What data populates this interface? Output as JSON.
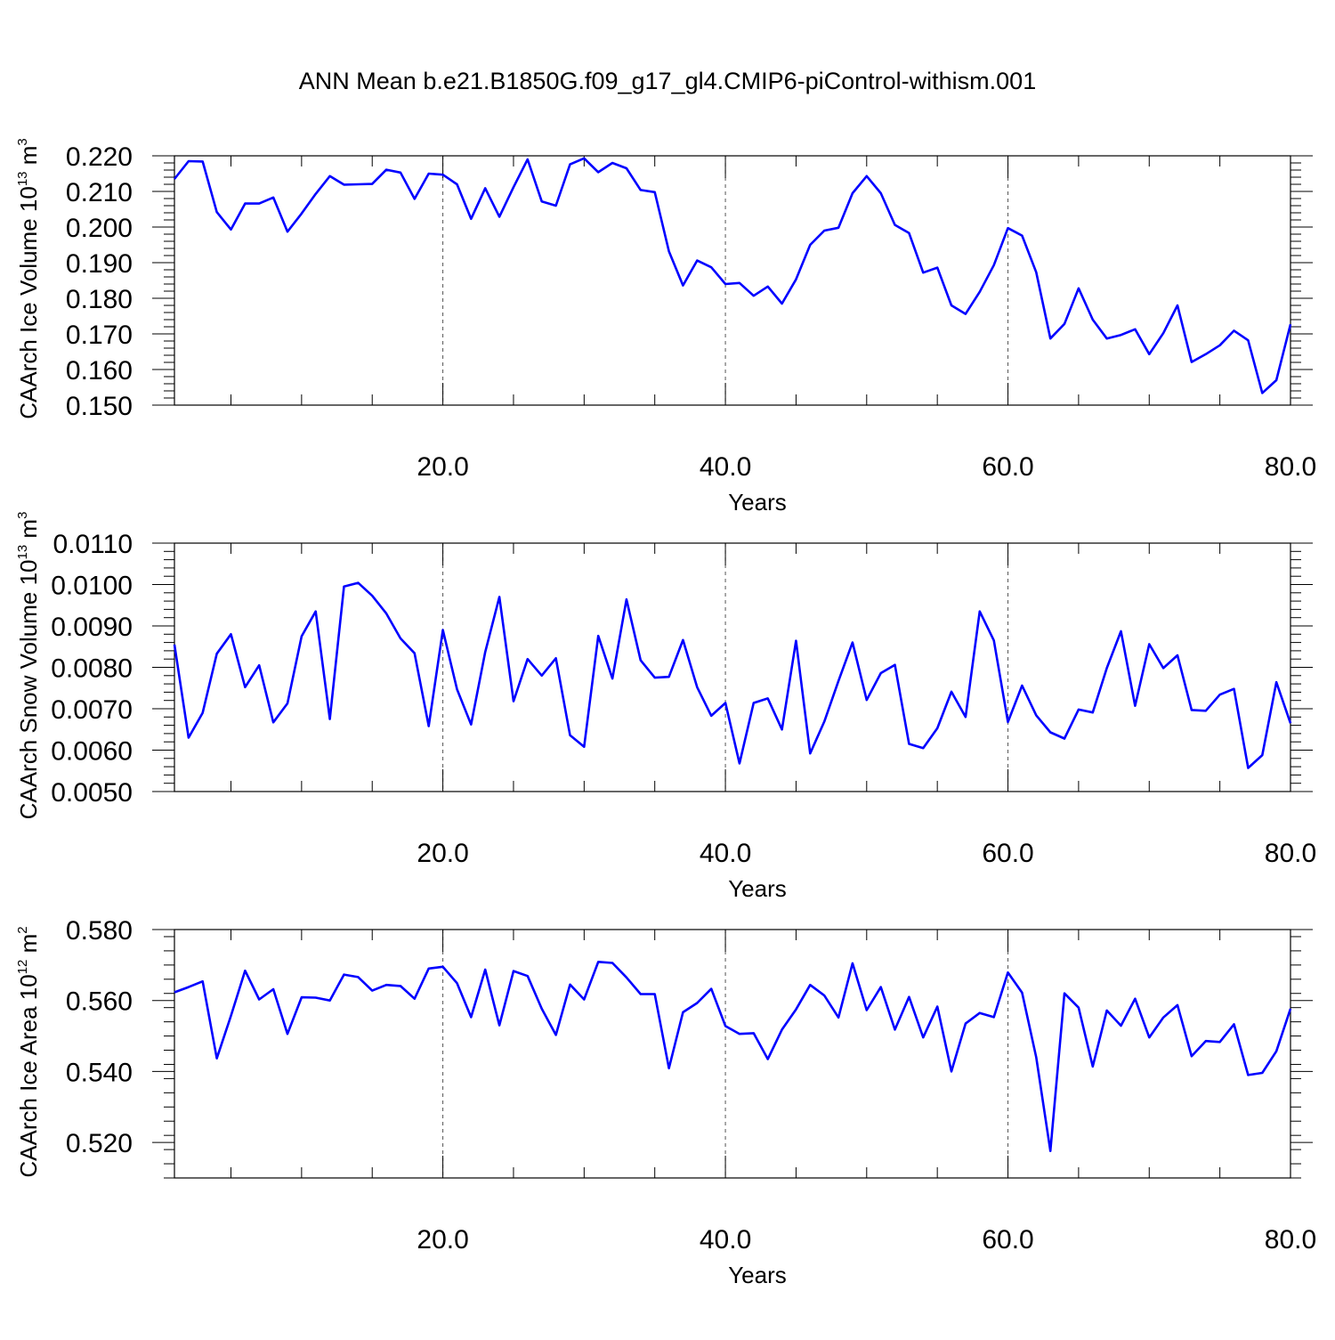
{
  "title": "ANN Mean b.e21.B1850G.f09_g17_gl4.CMIP6-piControl-withism.001",
  "chart_data": [
    {
      "type": "line",
      "title": "",
      "xlabel": "Years",
      "ylabel": "CAArch Ice Volume 10",
      "ylabel_exp": "13",
      "ylabel_unit": " m",
      "ylabel_unit_exp": "3",
      "xlim": [
        1,
        80
      ],
      "ylim": [
        0.15,
        0.22
      ],
      "xticks": [
        20,
        40,
        60,
        80
      ],
      "xtick_labels": [
        "20.0",
        "40.0",
        "60.0",
        "80.0"
      ],
      "yticks": [
        0.15,
        0.16,
        0.17,
        0.18,
        0.19,
        0.2,
        0.21,
        0.22
      ],
      "ytick_labels": [
        "0.150",
        "0.160",
        "0.170",
        "0.180",
        "0.190",
        "0.200",
        "0.210",
        "0.220"
      ],
      "grid": "vertical dashed at major x ticks",
      "color": "#0000ff",
      "x_start": 1,
      "values": [
        0.2135,
        0.2185,
        0.2184,
        0.2042,
        0.1993,
        0.2066,
        0.2066,
        0.2083,
        0.1987,
        0.2038,
        0.2093,
        0.2143,
        0.2119,
        0.212,
        0.2121,
        0.2161,
        0.2153,
        0.2079,
        0.215,
        0.2147,
        0.212,
        0.2023,
        0.2109,
        0.2029,
        0.2112,
        0.219,
        0.2072,
        0.206,
        0.2176,
        0.2193,
        0.2154,
        0.218,
        0.2165,
        0.2104,
        0.2098,
        0.1932,
        0.1836,
        0.1906,
        0.1887,
        0.184,
        0.1843,
        0.1807,
        0.1833,
        0.1785,
        0.1853,
        0.195,
        0.199,
        0.1998,
        0.2095,
        0.2143,
        0.2095,
        0.2006,
        0.1983,
        0.1872,
        0.1886,
        0.178,
        0.1756,
        0.1818,
        0.1893,
        0.1997,
        0.1976,
        0.1873,
        0.1687,
        0.1728,
        0.1828,
        0.174,
        0.1687,
        0.1697,
        0.1713,
        0.1643,
        0.1702,
        0.178,
        0.1621,
        0.1643,
        0.1668,
        0.1709,
        0.1682,
        0.1534,
        0.157,
        0.1727
      ]
    },
    {
      "type": "line",
      "title": "",
      "xlabel": "Years",
      "ylabel": "CAArch Snow Volume 10",
      "ylabel_exp": "13",
      "ylabel_unit": " m",
      "ylabel_unit_exp": "3",
      "xlim": [
        1,
        80
      ],
      "ylim": [
        0.005,
        0.011
      ],
      "xticks": [
        20,
        40,
        60,
        80
      ],
      "xtick_labels": [
        "20.0",
        "40.0",
        "60.0",
        "80.0"
      ],
      "yticks": [
        0.005,
        0.006,
        0.007,
        0.008,
        0.009,
        0.01,
        0.011
      ],
      "ytick_labels": [
        "0.0050",
        "0.0060",
        "0.0070",
        "0.0080",
        "0.0090",
        "0.0100",
        "0.0110"
      ],
      "grid": "vertical dashed at major x ticks",
      "color": "#0000ff",
      "x_start": 1,
      "values": [
        0.00855,
        0.0063,
        0.0069,
        0.00833,
        0.0088,
        0.00752,
        0.00805,
        0.00667,
        0.00713,
        0.00875,
        0.00935,
        0.00675,
        0.00995,
        0.01004,
        0.00973,
        0.0093,
        0.0087,
        0.00834,
        0.00658,
        0.0089,
        0.00747,
        0.00662,
        0.00837,
        0.0097,
        0.00718,
        0.0082,
        0.0078,
        0.00822,
        0.00636,
        0.00608,
        0.00876,
        0.00773,
        0.00964,
        0.00817,
        0.00775,
        0.00777,
        0.00866,
        0.00752,
        0.00683,
        0.00714,
        0.00568,
        0.00714,
        0.00725,
        0.0065,
        0.00864,
        0.00592,
        0.00669,
        0.00767,
        0.0086,
        0.00721,
        0.00786,
        0.00806,
        0.00615,
        0.00605,
        0.00653,
        0.00741,
        0.0068,
        0.00935,
        0.00865,
        0.00668,
        0.00756,
        0.00684,
        0.00643,
        0.00628,
        0.00698,
        0.00691,
        0.00798,
        0.00887,
        0.00707,
        0.00856,
        0.00798,
        0.00829,
        0.00697,
        0.00695,
        0.00734,
        0.00748,
        0.00557,
        0.00588,
        0.00764,
        0.00665
      ]
    },
    {
      "type": "line",
      "title": "",
      "xlabel": "Years",
      "ylabel": "CAArch Ice Area 10",
      "ylabel_exp": "12",
      "ylabel_unit": " m",
      "ylabel_unit_exp": "2",
      "xlim": [
        1,
        80
      ],
      "ylim": [
        0.51,
        0.58
      ],
      "xticks": [
        20,
        40,
        60,
        80
      ],
      "xtick_labels": [
        "20.0",
        "40.0",
        "60.0",
        "80.0"
      ],
      "yticks": [
        0.52,
        0.54,
        0.56,
        0.58
      ],
      "ytick_labels": [
        "0.520",
        "0.540",
        "0.560",
        "0.580"
      ],
      "grid": "vertical dashed at major x ticks",
      "color": "#0000ff",
      "x_start": 1,
      "values": [
        0.5623,
        0.5638,
        0.5654,
        0.5437,
        0.5557,
        0.5684,
        0.5603,
        0.5632,
        0.5506,
        0.5609,
        0.5608,
        0.56,
        0.5673,
        0.5666,
        0.5628,
        0.5644,
        0.5641,
        0.5605,
        0.569,
        0.5695,
        0.5649,
        0.5553,
        0.5687,
        0.553,
        0.5683,
        0.5669,
        0.5577,
        0.5503,
        0.5645,
        0.5603,
        0.5709,
        0.5706,
        0.5665,
        0.5618,
        0.5618,
        0.5409,
        0.5567,
        0.5593,
        0.5633,
        0.5528,
        0.5506,
        0.5508,
        0.5435,
        0.5518,
        0.5575,
        0.5644,
        0.5614,
        0.5552,
        0.5705,
        0.5573,
        0.5638,
        0.5518,
        0.561,
        0.5496,
        0.5583,
        0.54,
        0.5535,
        0.5565,
        0.5553,
        0.5679,
        0.5622,
        0.544,
        0.5176,
        0.562,
        0.558,
        0.5414,
        0.5572,
        0.5529,
        0.5605,
        0.5496,
        0.5552,
        0.5587,
        0.5443,
        0.5486,
        0.5483,
        0.5533,
        0.539,
        0.5396,
        0.5457,
        0.5577
      ]
    }
  ]
}
